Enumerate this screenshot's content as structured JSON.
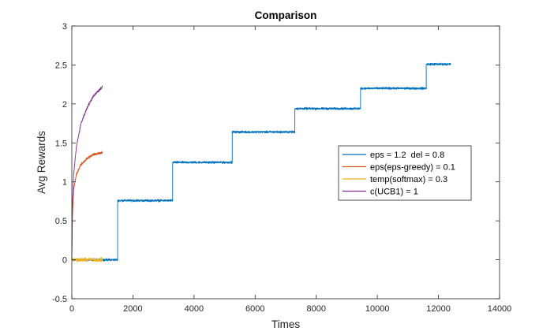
{
  "chart_data": {
    "type": "line",
    "title": "Comparison",
    "xlabel": "Times",
    "ylabel": "Avg Rewards",
    "xlim": [
      0,
      14000
    ],
    "ylim": [
      -0.5,
      3
    ],
    "xticks": [
      0,
      2000,
      4000,
      6000,
      8000,
      10000,
      12000,
      14000
    ],
    "xtick_labels": [
      "0",
      "2000",
      "4000",
      "6000",
      "8000",
      "10000",
      "12000",
      "14000"
    ],
    "yticks": [
      -0.5,
      0,
      0.5,
      1,
      1.5,
      2,
      2.5,
      3
    ],
    "ytick_labels": [
      "-0.5",
      "0",
      "0.5",
      "1",
      "1.5",
      "2",
      "2.5",
      "3"
    ],
    "grid": false,
    "legend_position": "center-right",
    "series": [
      {
        "name": "eps = 1.2  del = 0.8",
        "color": "#0072BD",
        "noise": 0.02,
        "points": [
          [
            0,
            0.0
          ],
          [
            1500,
            0.0
          ],
          [
            1500,
            0.76
          ],
          [
            3300,
            0.76
          ],
          [
            3300,
            1.25
          ],
          [
            5250,
            1.25
          ],
          [
            5250,
            1.64
          ],
          [
            7300,
            1.64
          ],
          [
            7300,
            1.94
          ],
          [
            9450,
            1.94
          ],
          [
            9450,
            2.2
          ],
          [
            11600,
            2.2
          ],
          [
            11600,
            2.51
          ],
          [
            12400,
            2.51
          ]
        ]
      },
      {
        "name": "eps(eps-greedy) = 0.1",
        "color": "#D95319",
        "noise": 0.025,
        "points": [
          [
            0,
            0.0
          ],
          [
            20,
            0.55
          ],
          [
            60,
            0.9
          ],
          [
            150,
            1.1
          ],
          [
            300,
            1.22
          ],
          [
            500,
            1.3
          ],
          [
            700,
            1.35
          ],
          [
            1000,
            1.38
          ]
        ]
      },
      {
        "name": "temp(softmax) = 0.3",
        "color": "#EDB120",
        "noise": 0.035,
        "points": [
          [
            0,
            0.0
          ],
          [
            1000,
            0.0
          ]
        ]
      },
      {
        "name": "c(UCB1) = 1",
        "color": "#7E2F8E",
        "noise": 0.025,
        "points": [
          [
            0,
            0.0
          ],
          [
            20,
            0.7
          ],
          [
            60,
            1.1
          ],
          [
            150,
            1.45
          ],
          [
            300,
            1.75
          ],
          [
            500,
            1.95
          ],
          [
            700,
            2.1
          ],
          [
            1000,
            2.22
          ]
        ]
      }
    ]
  }
}
